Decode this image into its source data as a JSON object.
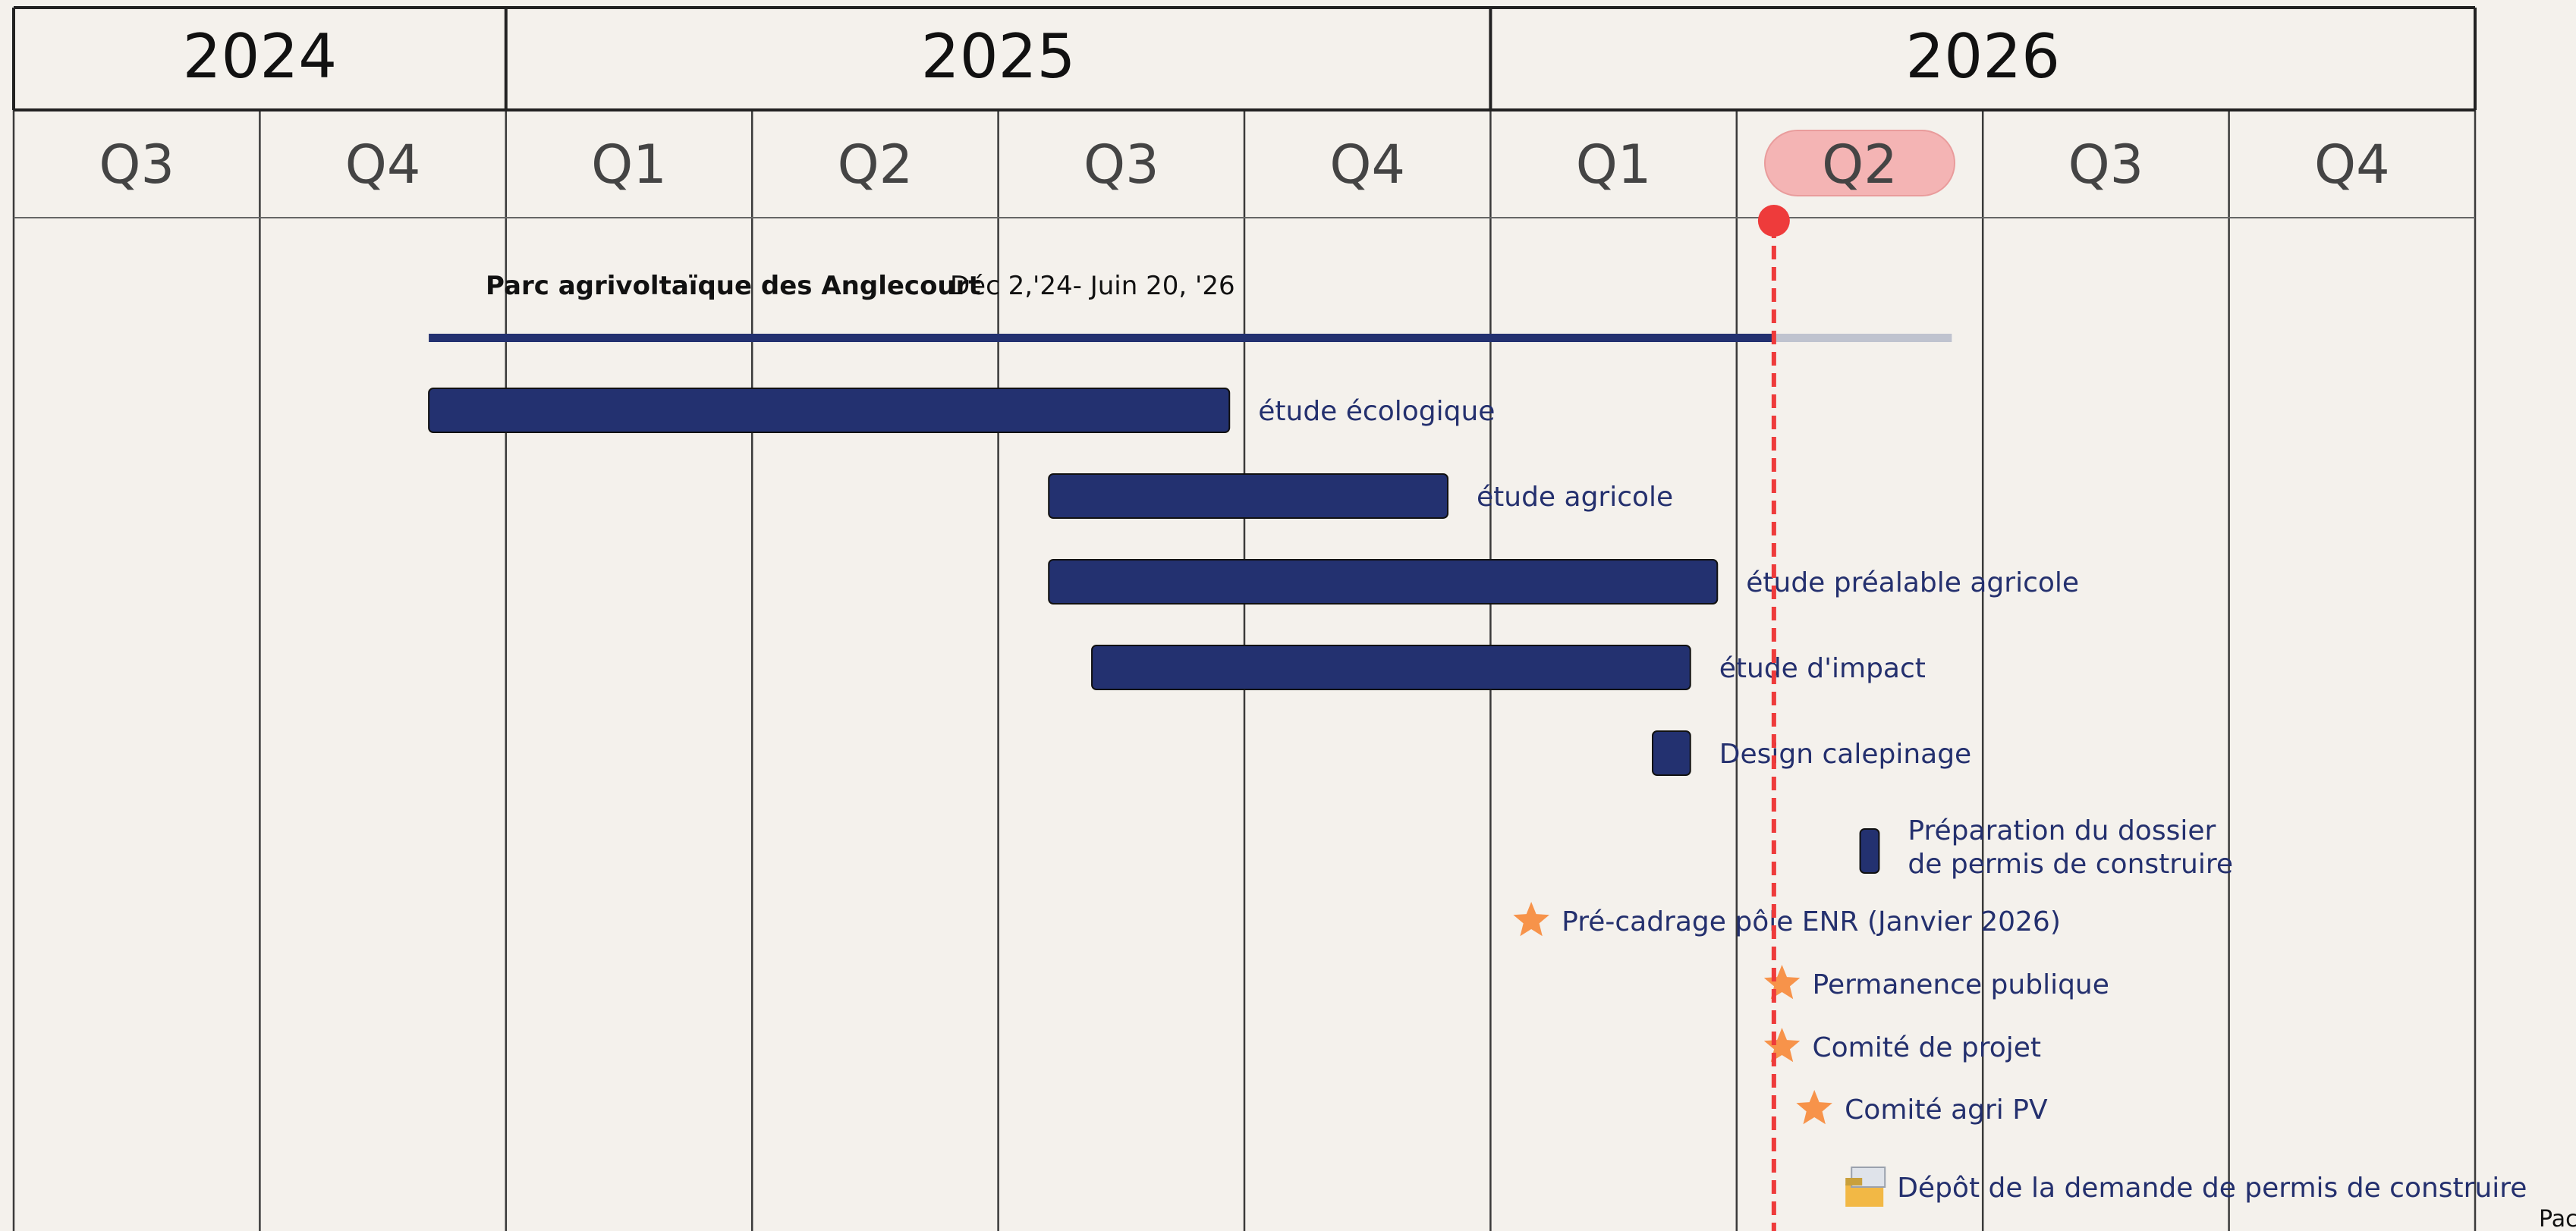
{
  "chart_data": {
    "type": "gantt",
    "years": [
      "2024",
      "2025",
      "2026"
    ],
    "quarters": [
      {
        "year": "2024",
        "label": "Q3"
      },
      {
        "year": "2024",
        "label": "Q4"
      },
      {
        "year": "2025",
        "label": "Q1"
      },
      {
        "year": "2025",
        "label": "Q2"
      },
      {
        "year": "2025",
        "label": "Q3"
      },
      {
        "year": "2025",
        "label": "Q4"
      },
      {
        "year": "2026",
        "label": "Q1"
      },
      {
        "year": "2026",
        "label": "Q2",
        "highlighted": true
      },
      {
        "year": "2026",
        "label": "Q3"
      },
      {
        "year": "2026",
        "label": "Q4"
      }
    ],
    "today": "2026-04-15",
    "project": {
      "name": "Parc agrivoltaïque des Anglecourt",
      "date_label": "Déc 2,'24- Juin 20, '26",
      "start": "2024-12-02",
      "end": "2026-06-20"
    },
    "tasks": [
      {
        "label": "étude écologique",
        "start": "2024-12-02",
        "end": "2025-09-25"
      },
      {
        "label": "étude agricole",
        "start": "2025-07-20",
        "end": "2025-12-15"
      },
      {
        "label": "étude préalable agricole",
        "start": "2025-07-20",
        "end": "2026-03-25"
      },
      {
        "label": "étude d'impact",
        "start": "2025-08-05",
        "end": "2026-03-15"
      },
      {
        "label": "Design calepinage",
        "start": "2026-03-01",
        "end": "2026-03-15"
      },
      {
        "label": "Préparation du dossier\nde permis de construire",
        "start": "2026-05-17",
        "end": "2026-05-24"
      }
    ],
    "milestones": [
      {
        "label": "Pré-cadrage pôle ENR (Janvier 2026)",
        "date": "2026-01-15",
        "icon": "star-icon"
      },
      {
        "label": "Permanence publique",
        "date": "2026-04-18",
        "icon": "star-icon"
      },
      {
        "label": "Comité de projet",
        "date": "2026-04-18",
        "icon": "star-icon"
      },
      {
        "label": "Comité agri PV",
        "date": "2026-04-30",
        "icon": "star-icon"
      },
      {
        "label": "Dépôt de la demande de permis de construire",
        "date": "2026-05-20",
        "icon": "folder-icon"
      }
    ],
    "corner_text": "Pac",
    "colors": {
      "bar": "#233170",
      "label": "#24306e",
      "today": "#ee3b3b",
      "highlight": "#f4b4b4",
      "star": "#f7934a",
      "progress_rest": "#bfc3cf"
    }
  }
}
